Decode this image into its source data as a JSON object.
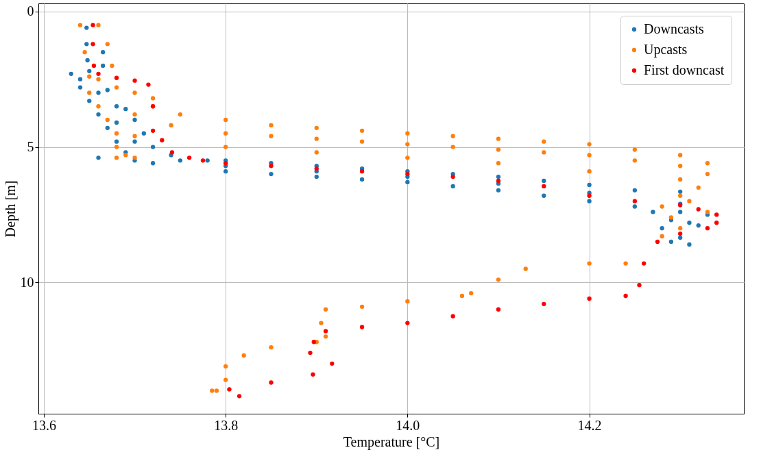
{
  "chart_data": {
    "type": "scatter",
    "xlabel": "Temperature [°C]",
    "ylabel": "Depth [m]",
    "xlim": [
      13.594,
      14.37
    ],
    "ylim": [
      14.85,
      -0.3
    ],
    "xticks": [
      13.6,
      13.8,
      {
        "value": 14.0,
        "label": "14.0"
      },
      14.2
    ],
    "yticks": [
      0,
      5,
      10
    ],
    "grid": true,
    "legend": "top right",
    "marker": "circle",
    "series": [
      {
        "name": "Downcasts",
        "color": "#1f77b4",
        "x": [
          13.647,
          13.647,
          13.648,
          13.665,
          13.665,
          13.63,
          13.64,
          13.65,
          13.66,
          13.67,
          13.68,
          13.69,
          13.7,
          13.64,
          13.66,
          13.68,
          13.7,
          13.71,
          13.72,
          13.74,
          13.65,
          13.67,
          13.69,
          13.68,
          13.7,
          13.66,
          13.72,
          13.75,
          13.78,
          13.8,
          13.85,
          13.9,
          13.95,
          14.0,
          14.05,
          14.1,
          14.15,
          14.2,
          14.25,
          14.3,
          13.8,
          13.85,
          13.9,
          13.95,
          14.0,
          14.05,
          14.1,
          14.15,
          14.2,
          14.25,
          14.3,
          13.8,
          13.9,
          14.0,
          14.1,
          14.2,
          14.3,
          14.27,
          14.29,
          14.31,
          14.33,
          14.28,
          14.3,
          14.32,
          14.29,
          14.31
        ],
        "values": [
          0.6,
          1.2,
          1.8,
          1.5,
          2.0,
          2.3,
          2.8,
          3.3,
          3.8,
          4.3,
          4.8,
          5.2,
          5.5,
          2.5,
          3.0,
          3.5,
          4.0,
          4.5,
          5.0,
          5.3,
          2.2,
          2.9,
          3.6,
          4.1,
          4.8,
          5.4,
          5.6,
          5.5,
          5.5,
          5.5,
          5.6,
          5.7,
          5.8,
          5.9,
          6.0,
          6.1,
          6.25,
          6.4,
          6.6,
          6.65,
          5.9,
          6.0,
          6.1,
          6.2,
          6.3,
          6.45,
          6.6,
          6.8,
          7.0,
          7.2,
          7.4,
          5.7,
          5.9,
          6.1,
          6.35,
          6.7,
          7.1,
          7.4,
          7.7,
          7.8,
          7.5,
          8.0,
          8.35,
          7.9,
          8.5,
          8.6
        ]
      },
      {
        "name": "Upcasts",
        "color": "#ff7f0e",
        "x": [
          13.64,
          13.645,
          13.66,
          13.67,
          13.675,
          13.66,
          13.65,
          13.68,
          13.7,
          13.72,
          13.65,
          13.66,
          13.67,
          13.68,
          13.7,
          13.72,
          13.74,
          13.68,
          13.69,
          13.7,
          13.75,
          13.8,
          13.85,
          13.9,
          13.95,
          14.0,
          14.05,
          14.1,
          14.15,
          14.2,
          14.25,
          14.3,
          14.33,
          13.8,
          13.85,
          13.9,
          13.95,
          14.0,
          14.05,
          14.1,
          14.15,
          14.2,
          14.25,
          14.3,
          13.8,
          13.9,
          14.0,
          14.1,
          14.2,
          14.3,
          14.33,
          14.32,
          14.3,
          14.28,
          14.29,
          14.31,
          14.33,
          14.3,
          14.28,
          14.24,
          14.2,
          14.13,
          14.1,
          14.07,
          14.06,
          14.0,
          13.95,
          13.91,
          13.905,
          13.91,
          13.9,
          13.85,
          13.82,
          13.8,
          13.8,
          13.79,
          13.785,
          13.7,
          13.68
        ],
        "values": [
          0.5,
          1.5,
          0.5,
          1.2,
          2.0,
          2.5,
          2.4,
          2.8,
          3.0,
          3.2,
          3.0,
          3.5,
          4.0,
          4.5,
          3.8,
          3.5,
          4.2,
          5.0,
          5.3,
          4.6,
          3.8,
          4.0,
          4.2,
          4.3,
          4.4,
          4.5,
          4.6,
          4.7,
          4.8,
          4.9,
          5.1,
          5.3,
          5.6,
          4.5,
          4.6,
          4.7,
          4.8,
          4.9,
          5.0,
          5.1,
          5.2,
          5.3,
          5.5,
          5.7,
          5.0,
          5.2,
          5.4,
          5.6,
          5.9,
          6.2,
          6.0,
          6.5,
          6.8,
          7.2,
          7.6,
          7.0,
          7.4,
          8.0,
          8.3,
          9.3,
          9.3,
          9.5,
          9.9,
          10.4,
          10.5,
          10.7,
          10.9,
          11.0,
          11.5,
          12.0,
          12.2,
          12.4,
          12.7,
          13.1,
          13.6,
          14.0,
          14.0,
          5.4,
          5.4
        ]
      },
      {
        "name": "First downcast",
        "color": "#ff0000",
        "x": [
          13.654,
          13.654,
          13.655,
          13.66,
          13.68,
          13.7,
          13.715,
          13.72,
          13.72,
          13.73,
          13.741,
          13.76,
          13.775,
          13.8,
          13.85,
          13.9,
          13.95,
          14.0,
          14.05,
          14.1,
          14.15,
          14.2,
          14.25,
          14.3,
          14.32,
          14.34,
          14.34,
          14.33,
          14.3,
          14.275,
          14.26,
          14.255,
          14.24,
          14.2,
          14.15,
          14.1,
          14.05,
          14.0,
          13.95,
          13.91,
          13.897,
          13.893,
          13.917,
          13.896,
          13.85,
          13.804,
          13.815
        ],
        "values": [
          0.5,
          1.2,
          2.0,
          2.3,
          2.45,
          2.55,
          2.7,
          3.5,
          4.4,
          4.75,
          5.2,
          5.4,
          5.5,
          5.6,
          5.7,
          5.8,
          5.9,
          6.0,
          6.1,
          6.25,
          6.45,
          6.8,
          7.0,
          7.15,
          7.3,
          7.5,
          7.8,
          8.0,
          8.2,
          8.5,
          9.3,
          10.1,
          10.5,
          10.6,
          10.8,
          11.0,
          11.25,
          11.5,
          11.65,
          11.8,
          12.2,
          12.6,
          13.0,
          13.4,
          13.7,
          13.95,
          14.2
        ]
      }
    ]
  }
}
